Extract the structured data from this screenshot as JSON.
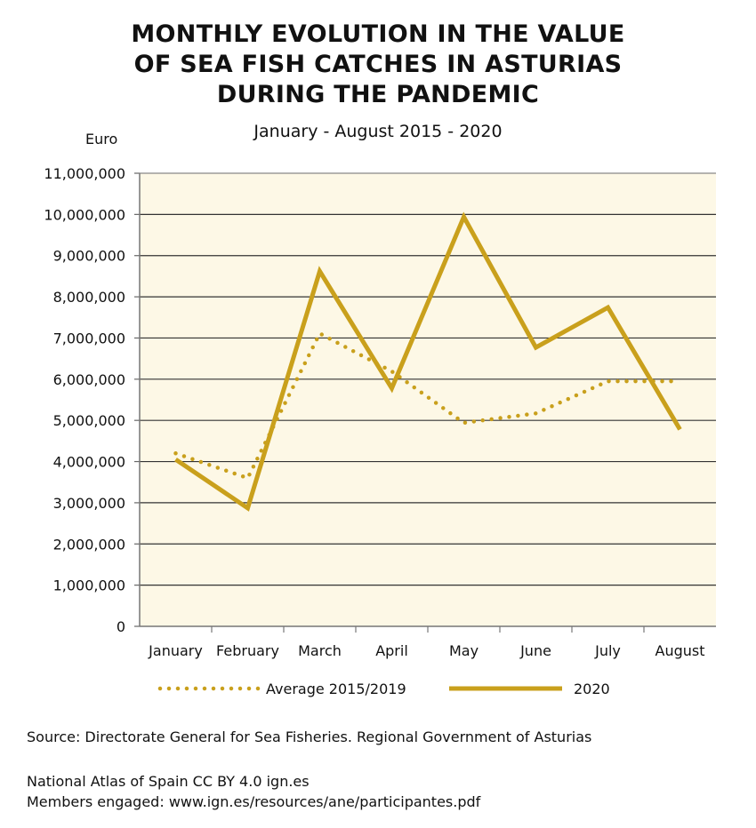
{
  "chart_data": {
    "type": "line",
    "title_lines": [
      "MONTHLY EVOLUTION IN THE VALUE",
      "OF SEA FISH CATCHES IN ASTURIAS",
      "DURING THE PANDEMIC"
    ],
    "subtitle": "January - August 2015 - 2020",
    "ylabel": "Euro",
    "xlabel": "",
    "ylim": [
      0,
      11000000
    ],
    "yticks": [
      0,
      1000000,
      2000000,
      3000000,
      4000000,
      5000000,
      6000000,
      7000000,
      8000000,
      9000000,
      10000000,
      11000000
    ],
    "ytick_labels": [
      "0",
      "1,000,000",
      "2,000,000",
      "3,000,000",
      "4,000,000",
      "5,000,000",
      "6,000,000",
      "7,000,000",
      "8,000,000",
      "9,000,000",
      "10,000,000",
      "11,000,000"
    ],
    "categories": [
      "January",
      "February",
      "March",
      "April",
      "May",
      "June",
      "July",
      "August"
    ],
    "grid": true,
    "legend_position": "bottom",
    "series": [
      {
        "name": "Average 2015/2019",
        "style": "dotted",
        "color": "#c9a01c",
        "values": [
          4200000,
          3600000,
          7110000,
          6190000,
          4940000,
          5170000,
          5950000,
          5950000
        ]
      },
      {
        "name": "2020",
        "style": "solid",
        "color": "#c9a01c",
        "values": [
          4050000,
          2870000,
          8620000,
          5780000,
          9940000,
          6770000,
          7740000,
          4780000
        ]
      }
    ]
  },
  "colors": {
    "plot_background": "#fdf8e6",
    "line": "#c9a01c",
    "grid": "#333333"
  },
  "source": "Source: Directorate General for Sea Fisheries. Regional Government of Asturias",
  "credits": [
    "National Atlas of Spain CC BY 4.0 ign.es",
    "Members engaged: www.ign.es/resources/ane/participantes.pdf"
  ]
}
